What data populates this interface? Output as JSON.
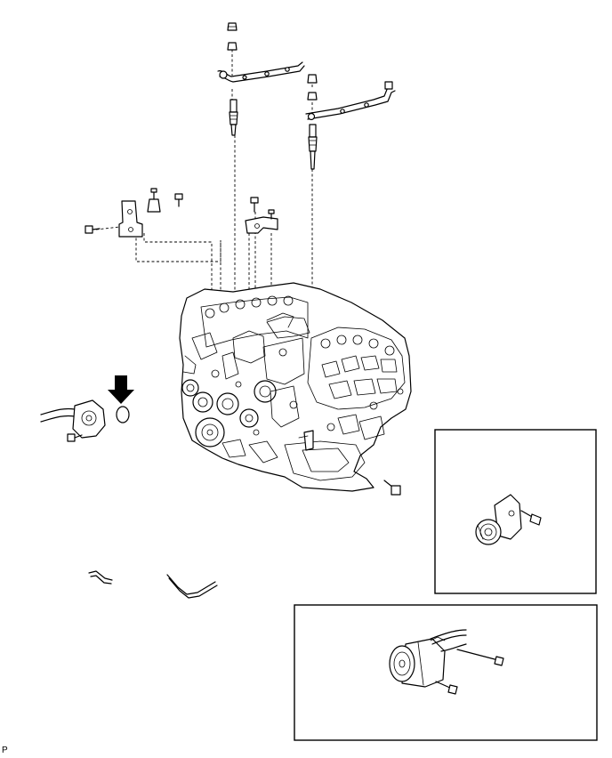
{
  "figure": {
    "code_label": "P",
    "background": "#ffffff",
    "line_color": "#000000"
  },
  "parts": [
    "glow-plug-nut-left",
    "glow-plug-connector-left",
    "glow-plug-left",
    "glow-plug-nut-right",
    "glow-plug-connector-right",
    "glow-plug-right",
    "wire-harness-bracket-left",
    "wire-harness-bracket-right",
    "engine-assembly",
    "vacuum-pump",
    "o-ring",
    "hoses",
    "idler-pulley-bracket",
    "ac-compressor"
  ],
  "callouts": [
    "new-part-arrow"
  ],
  "insets": [
    "idler-pulley-inset",
    "compressor-inset"
  ]
}
